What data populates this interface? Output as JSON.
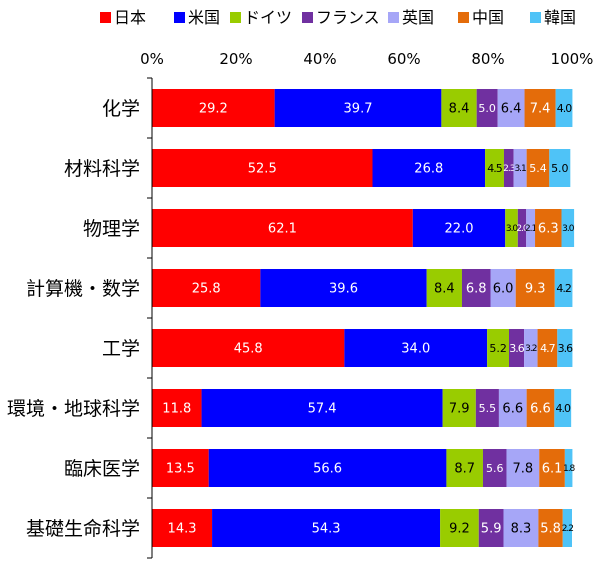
{
  "chart_data": {
    "type": "bar",
    "orientation": "horizontal",
    "stacked": "percent",
    "xlim": [
      0,
      100
    ],
    "x_ticks": [
      "0%",
      "20%",
      "40%",
      "60%",
      "80%",
      "100%"
    ],
    "x_tick_values": [
      0,
      20,
      40,
      60,
      80,
      100
    ],
    "grid": false,
    "legend_position": "top",
    "categories": [
      "化学",
      "材料科学",
      "物理学",
      "計算機・数学",
      "工学",
      "環境・地球科学",
      "臨床医学",
      "基礎生命科学"
    ],
    "series": [
      {
        "name": "日本",
        "color": "#ff0000",
        "label_color": "#ffffff",
        "values": [
          29.2,
          52.5,
          62.1,
          25.8,
          45.8,
          11.8,
          13.5,
          14.3
        ],
        "labels": [
          "29.2",
          "52.5",
          "62.1",
          "25.8",
          "45.8",
          "11.8",
          "13.5",
          "14.3"
        ]
      },
      {
        "name": "米国",
        "color": "#0000ff",
        "label_color": "#ffffff",
        "values": [
          39.7,
          26.8,
          22.0,
          39.6,
          34.0,
          57.4,
          56.6,
          54.3
        ],
        "labels": [
          "39.7",
          "26.8",
          "22.0",
          "39.6",
          "34.0",
          "57.4",
          "56.6",
          "54.3"
        ]
      },
      {
        "name": "ドイツ",
        "color": "#99cc00",
        "label_color": "#000000",
        "values": [
          8.4,
          4.5,
          3.0,
          8.4,
          5.2,
          7.9,
          8.7,
          9.2
        ],
        "labels": [
          "8.4",
          "4.5",
          "3.0",
          "8.4",
          "5.2",
          "7.9",
          "8.7",
          "9.2"
        ]
      },
      {
        "name": "フランス",
        "color": "#7030a0",
        "label_color": "#ffffff",
        "values": [
          5.0,
          2.3,
          2.0,
          6.8,
          3.6,
          5.5,
          5.6,
          5.9
        ],
        "labels": [
          "5.0",
          "2.3",
          "2.0",
          "6.8",
          "3.6",
          "5.5",
          "5.6",
          "5.9"
        ]
      },
      {
        "name": "英国",
        "color": "#a6a6f7",
        "label_color": "#000000",
        "values": [
          6.4,
          3.1,
          2.1,
          6.0,
          3.2,
          6.6,
          7.8,
          8.3
        ],
        "labels": [
          "6.4",
          "3.1",
          "2.1",
          "6.0",
          "3.2",
          "6.6",
          "7.8",
          "8.3"
        ]
      },
      {
        "name": "中国",
        "color": "#e46c0a",
        "label_color": "#ffffff",
        "values": [
          7.4,
          5.4,
          6.3,
          9.3,
          4.7,
          6.6,
          6.1,
          5.8
        ],
        "labels": [
          "7.4",
          "5.4",
          "6.3",
          "9.3",
          "4.7",
          "6.6",
          "6.1",
          "5.8"
        ]
      },
      {
        "name": "韓国",
        "color": "#4fc3f7",
        "label_color": "#000000",
        "values": [
          4.0,
          5.0,
          3.0,
          4.2,
          3.6,
          4.0,
          1.8,
          2.2
        ],
        "labels": [
          "4.0",
          "5.0",
          "3.0",
          "4.2",
          "3.6",
          "4.0",
          "1.8",
          "2.2"
        ]
      }
    ]
  }
}
